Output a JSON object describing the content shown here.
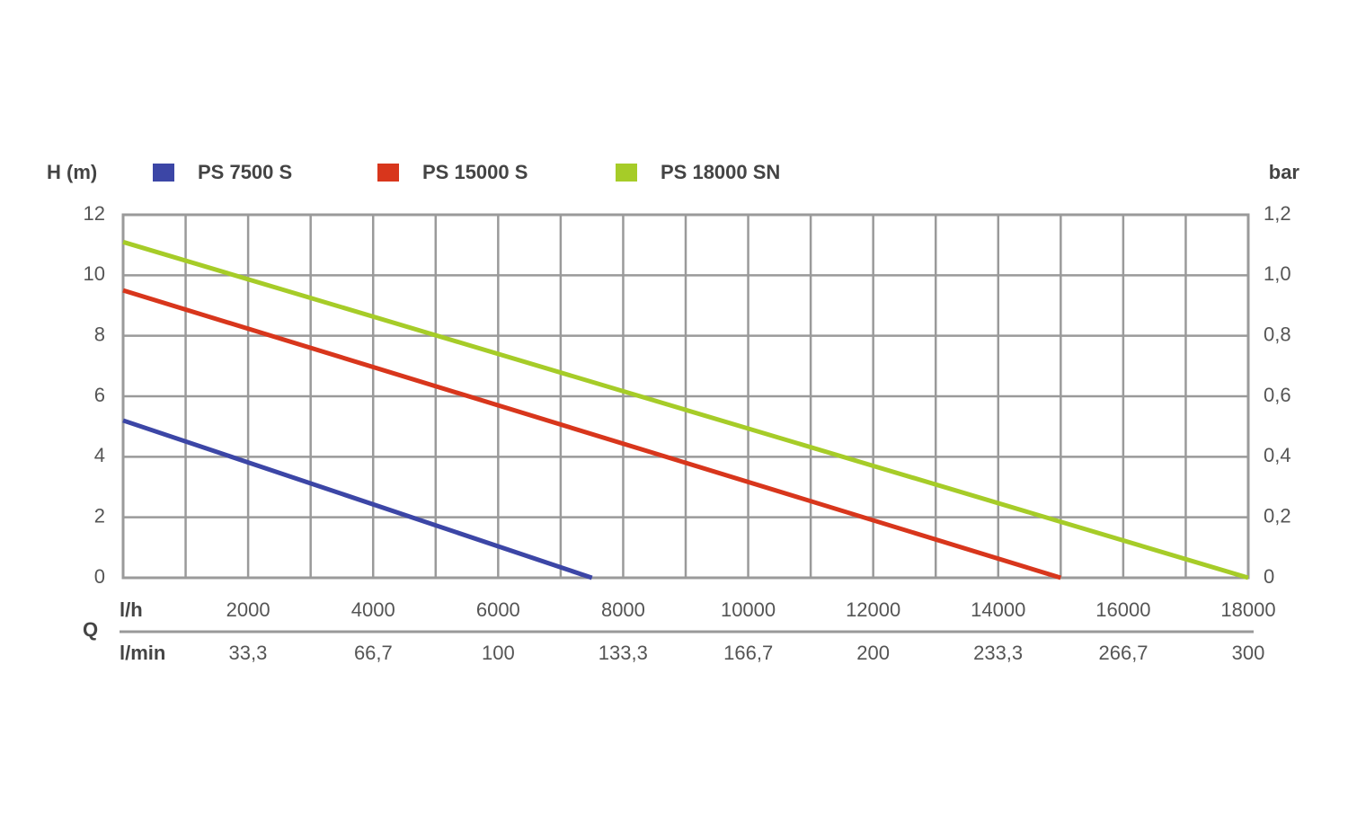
{
  "chart_data": {
    "type": "line",
    "y_label": "H (m)",
    "y2_label": "bar",
    "x_label": "l/h",
    "x2_label": "l/min",
    "x_group_label": "Q",
    "series": [
      {
        "name": "PS 7500 S",
        "color": "#3c46a6",
        "x": [
          0,
          7500
        ],
        "values": [
          5.2,
          0
        ]
      },
      {
        "name": "PS 15000 S",
        "color": "#d8361c",
        "x": [
          0,
          15000
        ],
        "values": [
          9.5,
          0
        ]
      },
      {
        "name": "PS 18000 SN",
        "color": "#a6cc28",
        "x": [
          0,
          18000
        ],
        "values": [
          11.1,
          0
        ]
      }
    ],
    "xlim": [
      0,
      18000
    ],
    "xticks": [
      2000,
      4000,
      6000,
      8000,
      10000,
      12000,
      14000,
      16000,
      18000
    ],
    "xgrid": [
      1000,
      2000,
      3000,
      4000,
      5000,
      6000,
      7000,
      8000,
      9000,
      10000,
      11000,
      12000,
      13000,
      14000,
      15000,
      16000,
      17000
    ],
    "x2lim": [
      0,
      300
    ],
    "x2ticks": [
      {
        "value": 33.3,
        "label": "33,3"
      },
      {
        "value": 66.7,
        "label": "66,7"
      },
      100,
      {
        "value": 133.3,
        "label": "133,3"
      },
      {
        "value": 166.7,
        "label": "166,7"
      },
      200,
      {
        "value": 233.3,
        "label": "233,3"
      },
      {
        "value": 266.7,
        "label": "266,7"
      },
      300
    ],
    "ylim": [
      0,
      12
    ],
    "yticks": [
      0,
      2,
      4,
      6,
      8,
      10,
      12
    ],
    "y2lim": [
      0,
      1.2
    ],
    "y2ticks": [
      0,
      {
        "value": 0.2,
        "label": "0,2"
      },
      {
        "value": 0.4,
        "label": "0,4"
      },
      {
        "value": 0.6,
        "label": "0,6"
      },
      {
        "value": 0.8,
        "label": "0,8"
      },
      {
        "value": 1.0,
        "label": "1,0"
      },
      {
        "value": 1.2,
        "label": "1,2"
      }
    ],
    "grid": true
  }
}
